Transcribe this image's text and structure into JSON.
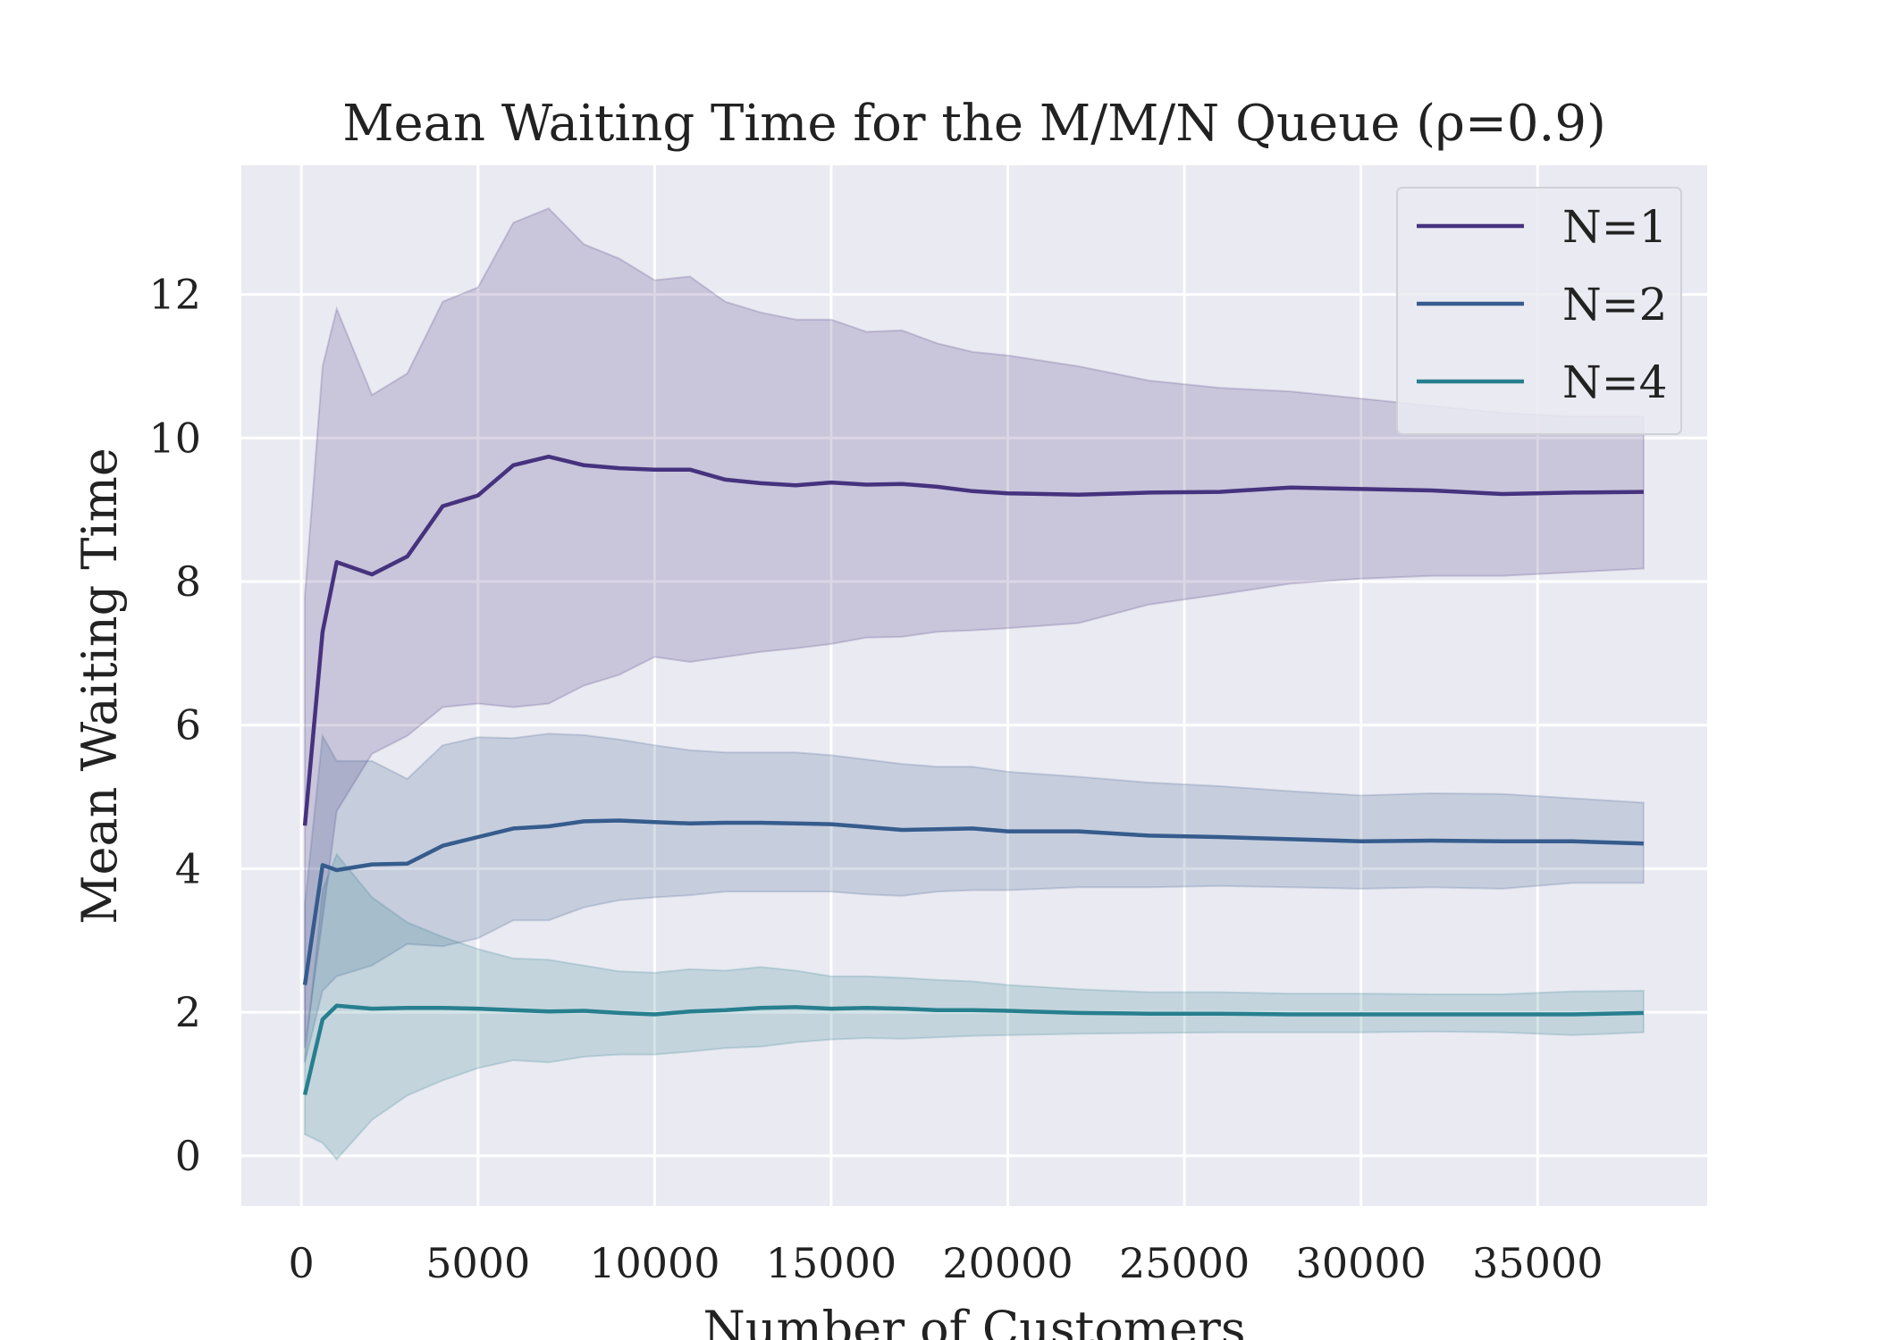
{
  "chart_data": {
    "type": "line",
    "title": "Mean Waiting Time for the M/M/N Queue (ρ=0.9)",
    "xlabel": "Number of Customers",
    "ylabel": "Mean Waiting Time",
    "xlim": [
      -1700,
      39800
    ],
    "ylim": [
      -0.7,
      13.8
    ],
    "xticks": [
      0,
      5000,
      10000,
      15000,
      20000,
      25000,
      30000,
      35000
    ],
    "yticks": [
      0,
      2,
      4,
      6,
      8,
      10,
      12
    ],
    "grid": true,
    "legend_position": "top-right",
    "x": [
      100,
      600,
      1000,
      2000,
      3000,
      4000,
      5000,
      6000,
      7000,
      8000,
      9000,
      10000,
      11000,
      12000,
      13000,
      14000,
      15000,
      16000,
      17000,
      18000,
      19000,
      20000,
      22000,
      24000,
      26000,
      28000,
      30000,
      32000,
      34000,
      36000,
      38000
    ],
    "series": [
      {
        "name": "N=1",
        "color": "#46327e",
        "band_color": "#46327e",
        "mean": [
          4.6,
          7.3,
          8.27,
          8.1,
          8.35,
          9.05,
          9.2,
          9.62,
          9.74,
          9.62,
          9.58,
          9.56,
          9.56,
          9.42,
          9.37,
          9.34,
          9.38,
          9.35,
          9.36,
          9.32,
          9.26,
          9.23,
          9.21,
          9.24,
          9.25,
          9.31,
          9.29,
          9.27,
          9.22,
          9.24,
          9.25
        ],
        "upper": [
          7.8,
          11.0,
          11.8,
          10.6,
          10.9,
          11.9,
          12.1,
          13.0,
          13.2,
          12.7,
          12.5,
          12.2,
          12.25,
          11.9,
          11.75,
          11.65,
          11.65,
          11.48,
          11.5,
          11.32,
          11.2,
          11.15,
          11.0,
          10.8,
          10.7,
          10.65,
          10.55,
          10.45,
          10.35,
          10.3,
          10.3
        ],
        "lower": [
          1.5,
          3.3,
          4.8,
          5.6,
          5.85,
          6.25,
          6.3,
          6.25,
          6.3,
          6.55,
          6.7,
          6.95,
          6.88,
          6.95,
          7.02,
          7.07,
          7.13,
          7.22,
          7.23,
          7.3,
          7.32,
          7.35,
          7.42,
          7.68,
          7.82,
          7.97,
          8.04,
          8.08,
          8.08,
          8.13,
          8.18
        ]
      },
      {
        "name": "N=2",
        "color": "#365c8d",
        "band_color": "#365c8d",
        "mean": [
          2.38,
          4.05,
          3.98,
          4.06,
          4.07,
          4.32,
          4.44,
          4.56,
          4.59,
          4.66,
          4.67,
          4.65,
          4.63,
          4.64,
          4.64,
          4.63,
          4.62,
          4.58,
          4.54,
          4.55,
          4.56,
          4.52,
          4.52,
          4.46,
          4.44,
          4.41,
          4.38,
          4.39,
          4.38,
          4.38,
          4.35
        ],
        "upper": [
          3.5,
          5.85,
          5.5,
          5.5,
          5.25,
          5.72,
          5.83,
          5.82,
          5.88,
          5.86,
          5.8,
          5.72,
          5.65,
          5.62,
          5.62,
          5.62,
          5.58,
          5.52,
          5.46,
          5.42,
          5.42,
          5.35,
          5.28,
          5.2,
          5.15,
          5.08,
          5.02,
          5.05,
          5.04,
          4.98,
          4.92
        ],
        "lower": [
          1.3,
          2.3,
          2.5,
          2.65,
          2.95,
          2.92,
          3.03,
          3.28,
          3.28,
          3.46,
          3.56,
          3.6,
          3.63,
          3.68,
          3.68,
          3.68,
          3.68,
          3.64,
          3.62,
          3.68,
          3.7,
          3.7,
          3.74,
          3.74,
          3.76,
          3.74,
          3.72,
          3.74,
          3.72,
          3.8,
          3.8
        ]
      },
      {
        "name": "N=4",
        "color": "#277f8e",
        "band_color": "#277f8e",
        "mean": [
          0.85,
          1.9,
          2.09,
          2.05,
          2.06,
          2.06,
          2.05,
          2.03,
          2.01,
          2.02,
          1.99,
          1.97,
          2.01,
          2.03,
          2.06,
          2.07,
          2.05,
          2.06,
          2.05,
          2.03,
          2.03,
          2.02,
          1.99,
          1.98,
          1.98,
          1.97,
          1.97,
          1.97,
          1.97,
          1.97,
          1.99
        ],
        "upper": [
          1.35,
          3.7,
          4.2,
          3.6,
          3.25,
          3.05,
          2.88,
          2.75,
          2.73,
          2.65,
          2.57,
          2.55,
          2.6,
          2.58,
          2.63,
          2.58,
          2.5,
          2.5,
          2.48,
          2.45,
          2.43,
          2.38,
          2.32,
          2.28,
          2.28,
          2.26,
          2.26,
          2.25,
          2.25,
          2.29,
          2.3
        ],
        "lower": [
          0.3,
          0.18,
          -0.05,
          0.5,
          0.84,
          1.05,
          1.22,
          1.33,
          1.3,
          1.38,
          1.41,
          1.41,
          1.45,
          1.5,
          1.52,
          1.58,
          1.62,
          1.64,
          1.63,
          1.65,
          1.67,
          1.68,
          1.7,
          1.71,
          1.72,
          1.72,
          1.72,
          1.73,
          1.72,
          1.68,
          1.72
        ]
      }
    ]
  },
  "style": {
    "axes_background": "#eaeaf2",
    "grid_color": "#ffffff",
    "text_color": "#222222"
  }
}
